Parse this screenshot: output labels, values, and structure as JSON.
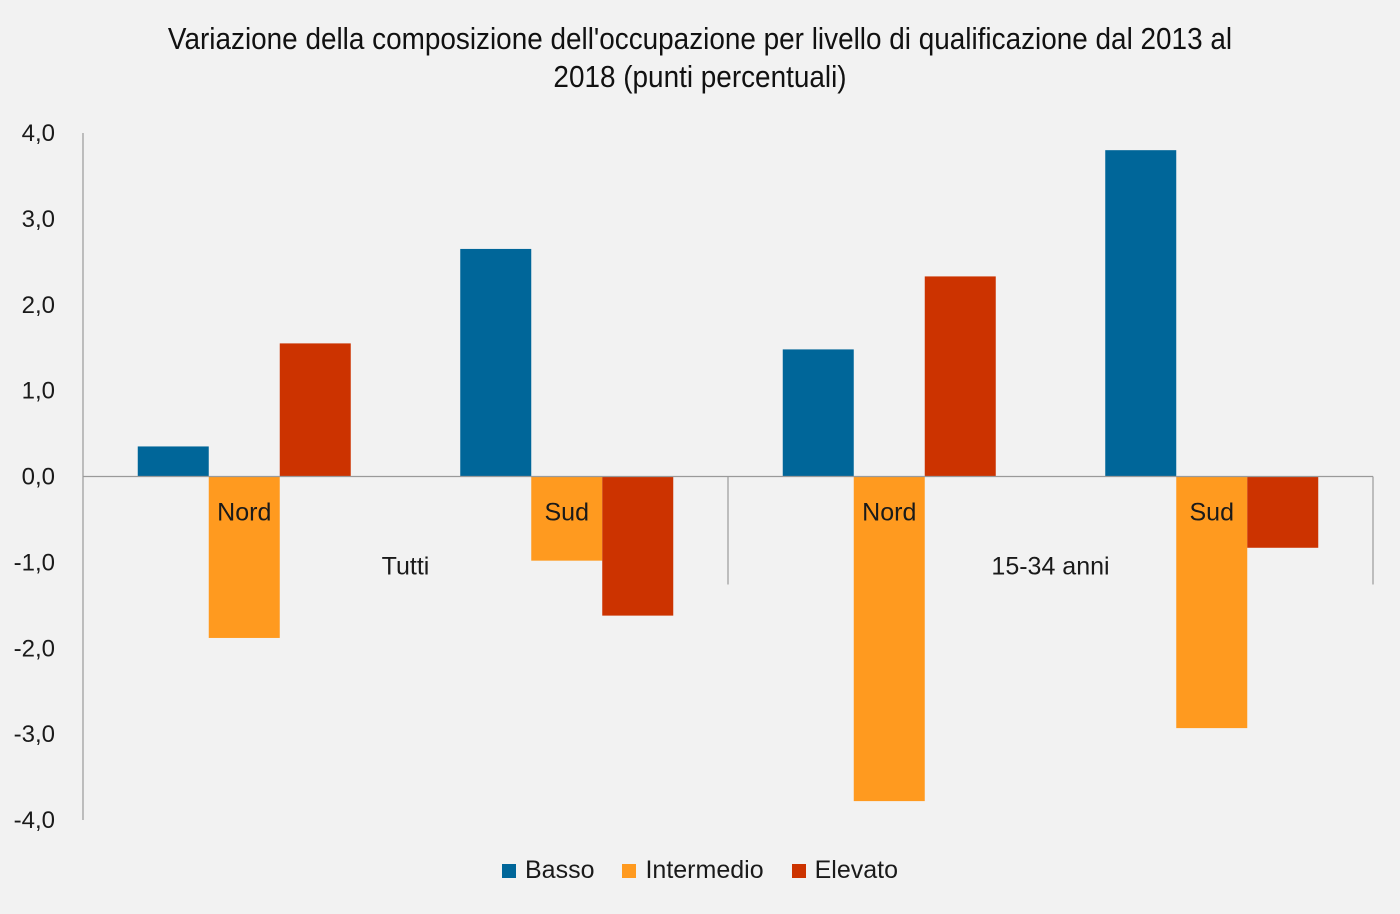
{
  "chart_data": {
    "type": "bar",
    "title_lines": [
      "Variazione della composizione dell'occupazione per livello di qualificazione dal 2013 al",
      "2018 (punti percentuali)"
    ],
    "groups": [
      "Tutti",
      "15-34 anni"
    ],
    "categories": [
      "Nord",
      "Sud",
      "Nord",
      "Sud"
    ],
    "category_group": [
      0,
      0,
      1,
      1
    ],
    "series": [
      {
        "name": "Basso",
        "color": "#006699",
        "values": [
          0.35,
          2.65,
          1.48,
          3.8
        ]
      },
      {
        "name": "Intermedio",
        "color": "#ff9a1f",
        "values": [
          -1.88,
          -0.98,
          -3.78,
          -2.93
        ]
      },
      {
        "name": "Elevato",
        "color": "#cc3300",
        "values": [
          1.55,
          -1.62,
          2.33,
          -0.83
        ]
      }
    ],
    "ylim": [
      -4.0,
      4.0
    ],
    "yticks": [
      4.0,
      3.0,
      2.0,
      1.0,
      0.0,
      -1.0,
      -2.0,
      -3.0,
      -4.0
    ],
    "ytick_labels": [
      "4,0",
      "3,0",
      "2,0",
      "1,0",
      "0,0",
      "-1,0",
      "-2,0",
      "-3,0",
      "-4,0"
    ],
    "grid": false,
    "legend_position": "bottom"
  }
}
